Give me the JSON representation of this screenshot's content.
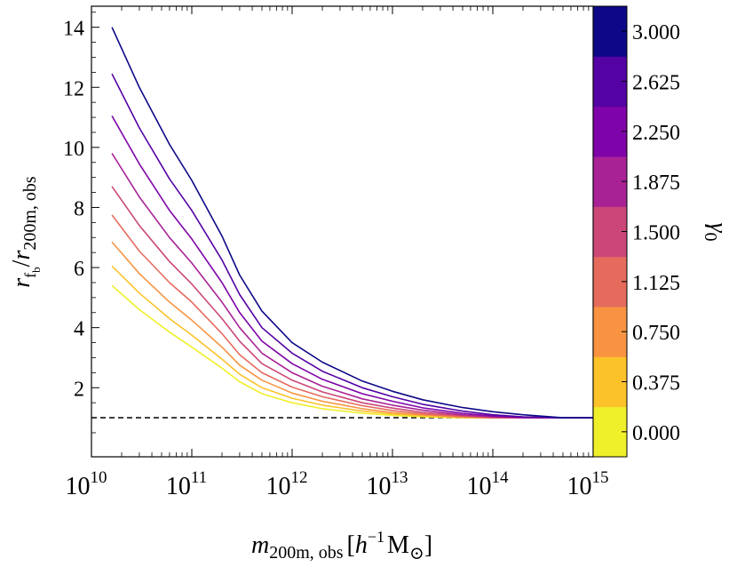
{
  "chart_data": {
    "type": "line",
    "x_scale": "log",
    "xlim": [
      10000000000.0,
      1000000000000000.0
    ],
    "ylim": [
      -0.3,
      14.7
    ],
    "x_ticks": [
      {
        "base": "10",
        "exp": "10"
      },
      {
        "base": "10",
        "exp": "11"
      },
      {
        "base": "10",
        "exp": "12"
      },
      {
        "base": "10",
        "exp": "13"
      },
      {
        "base": "10",
        "exp": "14"
      },
      {
        "base": "10",
        "exp": "15"
      }
    ],
    "y_ticks": [
      "2",
      "4",
      "6",
      "8",
      "10",
      "12",
      "14"
    ],
    "xlabel": {
      "main": "m",
      "sub": "200m, obs",
      "unit_open": "[",
      "unit_h": "h",
      "unit_exp": "−1",
      "unit_M": "M",
      "unit_sun": "⊙",
      "unit_close": "]"
    },
    "ylabel": {
      "r1": "r",
      "sub1": "f",
      "subsub1": "b",
      "slash": "/",
      "r2": "r",
      "sub2": "200m, obs"
    },
    "reference_line": {
      "y": 1,
      "style": "dashed"
    },
    "x": [
      16000000000.0,
      30000000000.0,
      60000000000.0,
      100000000000.0,
      200000000000.0,
      300000000000.0,
      500000000000.0,
      1000000000000.0,
      2000000000000.0,
      5000000000000.0,
      10000000000000.0,
      20000000000000.0,
      50000000000000.0,
      100000000000000.0,
      200000000000000.0,
      500000000000000.0,
      1000000000000000.0
    ],
    "series": [
      {
        "color": "#efef2a",
        "values": [
          5.4,
          4.6,
          3.85,
          3.35,
          2.65,
          2.2,
          1.8,
          1.5,
          1.3,
          1.15,
          1.08,
          1.03,
          1.0,
          1.0,
          1.0,
          1.0,
          1.0
        ]
      },
      {
        "color": "#fcc229",
        "values": [
          6.05,
          5.15,
          4.3,
          3.75,
          2.95,
          2.45,
          2.0,
          1.65,
          1.42,
          1.22,
          1.12,
          1.06,
          1.01,
          1.0,
          1.0,
          1.0,
          1.0
        ]
      },
      {
        "color": "#f89441",
        "values": [
          6.85,
          5.8,
          4.85,
          4.25,
          3.35,
          2.75,
          2.25,
          1.82,
          1.55,
          1.3,
          1.17,
          1.09,
          1.02,
          1.0,
          1.0,
          1.0,
          1.0
        ]
      },
      {
        "color": "#e56b5d",
        "values": [
          7.75,
          6.55,
          5.5,
          4.85,
          3.8,
          3.1,
          2.5,
          2.02,
          1.7,
          1.4,
          1.24,
          1.13,
          1.04,
          1.0,
          1.0,
          1.0,
          1.0
        ]
      },
      {
        "color": "#cb4778",
        "values": [
          8.7,
          7.4,
          6.2,
          5.45,
          4.3,
          3.55,
          2.8,
          2.25,
          1.86,
          1.5,
          1.32,
          1.18,
          1.07,
          1.01,
          1.0,
          1.0,
          1.0
        ]
      },
      {
        "color": "#a82296",
        "values": [
          9.8,
          8.35,
          7.0,
          6.15,
          4.85,
          4.0,
          3.15,
          2.5,
          2.05,
          1.63,
          1.42,
          1.25,
          1.1,
          1.03,
          1.0,
          1.0,
          1.0
        ]
      },
      {
        "color": "#7e03a8",
        "values": [
          11.05,
          9.45,
          7.9,
          6.95,
          5.5,
          4.5,
          3.55,
          2.8,
          2.28,
          1.8,
          1.55,
          1.33,
          1.15,
          1.06,
          1.01,
          1.0,
          1.0
        ]
      },
      {
        "color": "#5402a3",
        "values": [
          12.45,
          10.65,
          8.95,
          7.9,
          6.25,
          5.1,
          4.0,
          3.15,
          2.55,
          2.0,
          1.7,
          1.45,
          1.22,
          1.1,
          1.03,
          1.0,
          1.0
        ]
      },
      {
        "color": "#0d0887",
        "values": [
          14.0,
          12.0,
          10.1,
          8.9,
          7.05,
          5.75,
          4.55,
          3.5,
          2.85,
          2.22,
          1.88,
          1.6,
          1.34,
          1.2,
          1.1,
          1.0,
          1.0
        ]
      }
    ],
    "colorbar": {
      "label": "γ",
      "label_sub": "0",
      "ticks": [
        "0.000",
        "0.375",
        "0.750",
        "1.125",
        "1.500",
        "1.875",
        "2.250",
        "2.625",
        "3.000"
      ],
      "colors": [
        "#efef2a",
        "#fcc229",
        "#f89441",
        "#e56b5d",
        "#cb4778",
        "#a82296",
        "#7e03a8",
        "#5402a3",
        "#0d0887"
      ]
    }
  }
}
